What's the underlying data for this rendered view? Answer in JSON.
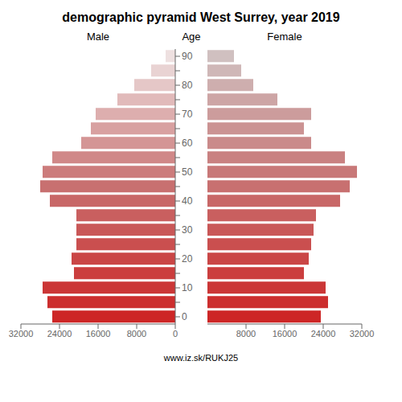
{
  "chart_data": {
    "type": "bar",
    "orientation": "horizontal",
    "title": "demographic pyramid West Surrey, year 2019",
    "ylabel": "Age",
    "annotations": [
      "www.iz.sk/RUKJ25"
    ],
    "categories": [
      "0",
      null,
      "10",
      null,
      "20",
      null,
      "30",
      null,
      "40",
      null,
      "50",
      null,
      "60",
      null,
      "70",
      null,
      "80",
      null,
      "90"
    ],
    "xlim": [
      0,
      32000
    ],
    "xticks": [
      0,
      8000,
      16000,
      24000,
      32000
    ],
    "grid": false,
    "series": [
      {
        "name": "Male",
        "colors": [
          "#cd2626",
          "#cc2e2e",
          "#cb3636",
          "#cb3e3e",
          "#ca4646",
          "#ca4f4f",
          "#c95757",
          "#c95f5f",
          "#c86767",
          "#c87070",
          "#cc7c7c",
          "#d08888",
          "#d49595",
          "#d8a1a1",
          "#ddaeae",
          "#e1baba",
          "#e5c7c7",
          "#e9d3d3",
          "#eee0e0"
        ],
        "values": [
          25500,
          26500,
          27500,
          21000,
          21500,
          20500,
          20500,
          20500,
          26000,
          28000,
          27500,
          25500,
          19500,
          17500,
          16500,
          12000,
          8500,
          5000,
          2000
        ]
      },
      {
        "name": "Female",
        "colors": [
          "#cd2626",
          "#cc2e2e",
          "#cb3636",
          "#cb3e3e",
          "#ca4646",
          "#ca4f4f",
          "#c95757",
          "#c95f5f",
          "#c86767",
          "#c87070",
          "#c87878",
          "#c98181",
          "#ca8a8a",
          "#cb9393",
          "#cc9c9c",
          "#cda5a5",
          "#ceaeae",
          "#cfb7b7",
          "#d0c0c0"
        ],
        "values": [
          23500,
          25000,
          24500,
          20000,
          21000,
          21500,
          22000,
          22500,
          27500,
          29500,
          31000,
          28500,
          21500,
          20000,
          21500,
          14500,
          9500,
          7000,
          5500
        ]
      }
    ]
  }
}
